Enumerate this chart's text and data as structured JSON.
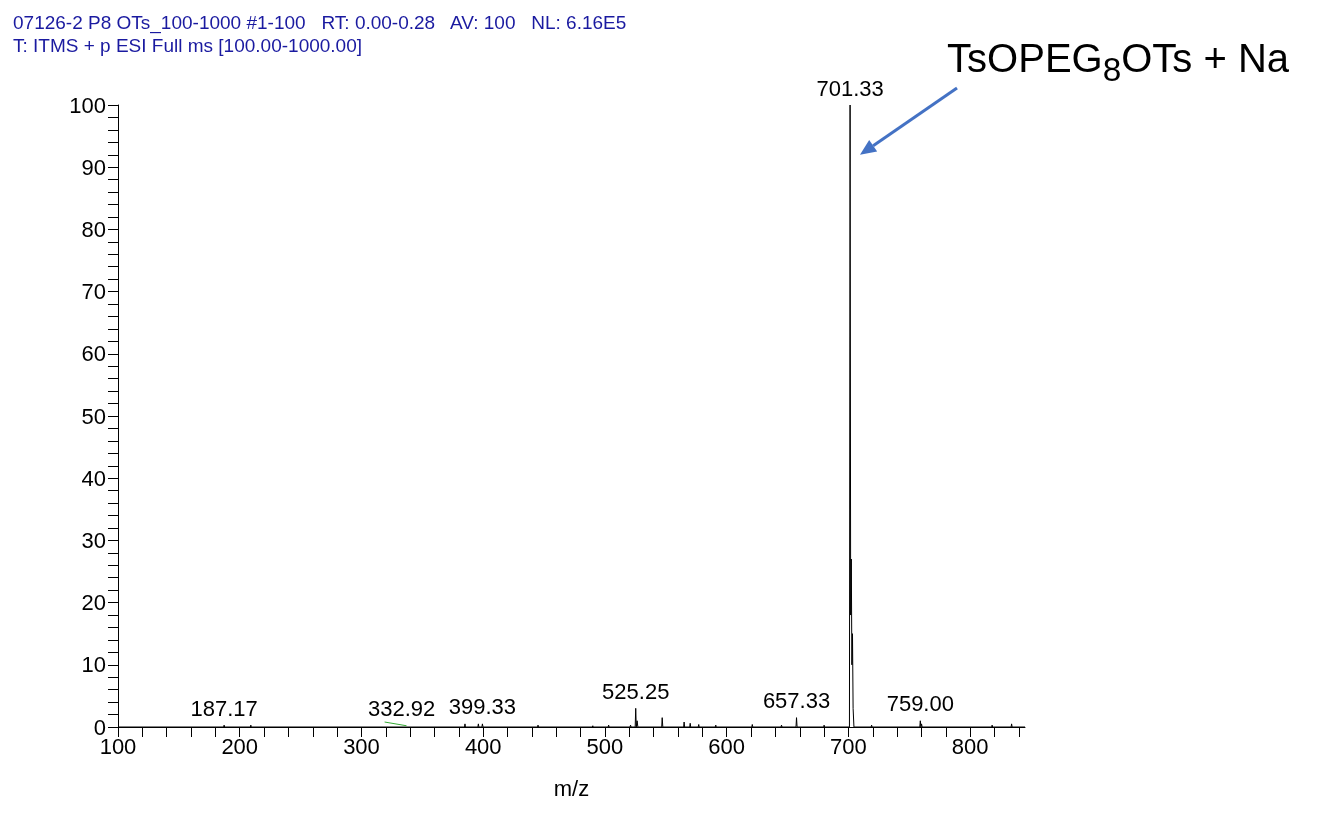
{
  "chart_data": {
    "type": "line",
    "title": "07126-2 P8 OTs_100-1000 #1-100   RT: 0.00-0.28   AV: 100   NL: 6.16E5",
    "subtitle": "T: ITMS + p ESI Full ms [100.00-1000.00]",
    "xlabel": "m/z",
    "xlim": [
      100,
      845
    ],
    "xticks": [
      100,
      {
        "value": 120,
        "label": null
      },
      {
        "value": 140,
        "label": null
      },
      {
        "value": 160,
        "label": null
      },
      {
        "value": 180,
        "label": null
      },
      200,
      {
        "value": 220,
        "label": null
      },
      {
        "value": 240,
        "label": null
      },
      {
        "value": 260,
        "label": null
      },
      {
        "value": 280,
        "label": null
      },
      300,
      {
        "value": 320,
        "label": null
      },
      {
        "value": 340,
        "label": null
      },
      {
        "value": 360,
        "label": null
      },
      {
        "value": 380,
        "label": null
      },
      400,
      {
        "value": 420,
        "label": null
      },
      {
        "value": 440,
        "label": null
      },
      {
        "value": 460,
        "label": null
      },
      {
        "value": 480,
        "label": null
      },
      500,
      {
        "value": 520,
        "label": null
      },
      {
        "value": 540,
        "label": null
      },
      {
        "value": 560,
        "label": null
      },
      {
        "value": 580,
        "label": null
      },
      600,
      {
        "value": 620,
        "label": null
      },
      {
        "value": 640,
        "label": null
      },
      {
        "value": 660,
        "label": null
      },
      {
        "value": 680,
        "label": null
      },
      700,
      {
        "value": 720,
        "label": null
      },
      {
        "value": 740,
        "label": null
      },
      {
        "value": 760,
        "label": null
      },
      {
        "value": 780,
        "label": null
      },
      800,
      {
        "value": 820,
        "label": null
      },
      {
        "value": 840,
        "label": null
      }
    ],
    "ylim": [
      0,
      100
    ],
    "yticks": [
      0,
      {
        "value": 2,
        "label": null
      },
      {
        "value": 4,
        "label": null
      },
      {
        "value": 6,
        "label": null
      },
      {
        "value": 8,
        "label": null
      },
      10,
      {
        "value": 12,
        "label": null
      },
      {
        "value": 14,
        "label": null
      },
      {
        "value": 16,
        "label": null
      },
      {
        "value": 18,
        "label": null
      },
      20,
      {
        "value": 22,
        "label": null
      },
      {
        "value": 24,
        "label": null
      },
      {
        "value": 26,
        "label": null
      },
      {
        "value": 28,
        "label": null
      },
      30,
      {
        "value": 32,
        "label": null
      },
      {
        "value": 34,
        "label": null
      },
      {
        "value": 36,
        "label": null
      },
      {
        "value": 38,
        "label": null
      },
      40,
      {
        "value": 42,
        "label": null
      },
      {
        "value": 44,
        "label": null
      },
      {
        "value": 46,
        "label": null
      },
      {
        "value": 48,
        "label": null
      },
      50,
      {
        "value": 52,
        "label": null
      },
      {
        "value": 54,
        "label": null
      },
      {
        "value": 56,
        "label": null
      },
      {
        "value": 58,
        "label": null
      },
      60,
      {
        "value": 62,
        "label": null
      },
      {
        "value": 64,
        "label": null
      },
      {
        "value": 66,
        "label": null
      },
      {
        "value": 68,
        "label": null
      },
      70,
      {
        "value": 72,
        "label": null
      },
      {
        "value": 74,
        "label": null
      },
      {
        "value": 76,
        "label": null
      },
      {
        "value": 78,
        "label": null
      },
      80,
      {
        "value": 82,
        "label": null
      },
      {
        "value": 84,
        "label": null
      },
      {
        "value": 86,
        "label": null
      },
      {
        "value": 88,
        "label": null
      },
      90,
      {
        "value": 92,
        "label": null
      },
      {
        "value": 94,
        "label": null
      },
      {
        "value": 96,
        "label": null
      },
      {
        "value": 98,
        "label": null
      },
      100
    ],
    "grid": false,
    "marker": "none",
    "line_style": "solid",
    "series": [
      {
        "color": "#000000",
        "x": [
          100,
          186.7,
          187.17,
          187.6,
          208.7,
          209.1,
          209.5,
          384.6,
          385,
          385.4,
          395.6,
          396,
          396.4,
          398.9,
          399.33,
          399.8,
          444.6,
          445,
          445.4,
          489.6,
          490,
          490.4,
          502.6,
          503,
          503.4,
          520.6,
          521,
          521.4,
          524.8,
          525.25,
          525.7,
          526.4,
          527,
          546.6,
          547,
          547.5,
          564.6,
          565,
          565.4,
          569.6,
          570,
          570.4,
          576.6,
          577,
          577.4,
          590.6,
          591,
          591.4,
          620.6,
          621,
          621.4,
          644.6,
          645,
          645.4,
          656.9,
          657.33,
          657.8,
          679.6,
          680,
          680.4,
          700.8,
          701.33,
          701.8,
          702.33,
          702.8,
          703.3,
          703.8,
          704.5,
          718.6,
          719,
          719.4,
          758.6,
          759,
          759.5,
          760,
          760.5,
          817.6,
          818,
          818.4,
          833.6,
          834,
          834.4,
          845
        ],
        "values": [
          0,
          0,
          0.3,
          0,
          0,
          0.3,
          0,
          0,
          0.5,
          0,
          0,
          0.5,
          0,
          0,
          0.5,
          0,
          0,
          0.3,
          0,
          0,
          0.2,
          0,
          0,
          0.3,
          0,
          0,
          0.3,
          0,
          0,
          3,
          0,
          1,
          0,
          0,
          1.5,
          0,
          0,
          0.8,
          0,
          0,
          0.6,
          0,
          0,
          0.4,
          0,
          0,
          0.3,
          0,
          0,
          0.4,
          0,
          0,
          0.3,
          0,
          0,
          1.5,
          0,
          0,
          0.3,
          0,
          0,
          100,
          18,
          27,
          10,
          15,
          3,
          0,
          0,
          0.3,
          0,
          0,
          1,
          0,
          0.5,
          0,
          0,
          0.3,
          0,
          0,
          0.5,
          0,
          0
        ]
      },
      {
        "color": "#33aa33",
        "x": [
          319,
          337
        ],
        "values": [
          0.8,
          0.2
        ]
      }
    ],
    "annotations": [
      {
        "text": "187.17",
        "x": 187.17,
        "y": 0.3
      },
      {
        "text": "332.92",
        "x": 332.92,
        "y": 0.3
      },
      {
        "text": "399.33",
        "x": 399.33,
        "y": 0.5
      },
      {
        "text": "525.25",
        "x": 525.25,
        "y": 3
      },
      {
        "text": "657.33",
        "x": 657.33,
        "y": 1.5
      },
      {
        "text": "701.33",
        "x": 701.33,
        "y": 100
      },
      {
        "text": "759.00",
        "x": 759,
        "y": 1
      },
      {
        "text": "TsOPEG$_{8}$OTs + Na",
        "x": 703,
        "y": 92
      }
    ]
  }
}
